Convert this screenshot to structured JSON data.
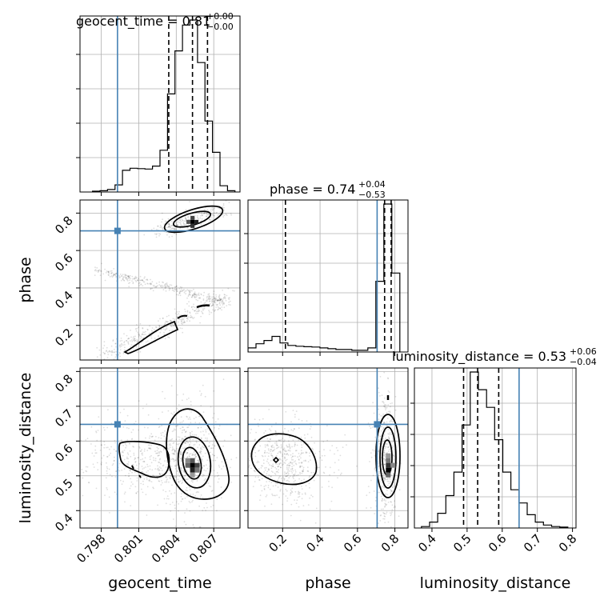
{
  "chart_data": {
    "type": "corner",
    "parameters": [
      "geocent_time",
      "phase",
      "luminosity_distance"
    ],
    "titles": {
      "geocent_time": {
        "name": "geocent_time",
        "value": "0.81",
        "plus": "+0.00",
        "minus": "−0.00"
      },
      "phase": {
        "name": "phase",
        "value": "0.74",
        "plus": "+0.04",
        "minus": "−0.53"
      },
      "luminosity_distance": {
        "name": "luminosity_distance",
        "value": "0.53",
        "plus": "+0.06",
        "minus": "−0.04"
      }
    },
    "axis_labels": {
      "geocent_time": "geocent_time",
      "phase": "phase",
      "luminosity_distance": "luminosity_distance"
    },
    "ranges": {
      "geocent_time": [
        0.7963,
        0.8091
      ],
      "phase": [
        0.015,
        0.87
      ],
      "luminosity_distance": [
        0.35,
        0.81
      ]
    },
    "ticks": {
      "geocent_time": [
        0.798,
        0.801,
        0.804,
        0.807
      ],
      "phase": [
        0.2,
        0.4,
        0.6,
        0.8
      ],
      "luminosity_distance": [
        0.4,
        0.5,
        0.6,
        0.7,
        0.8
      ]
    },
    "tick_labels": {
      "geocent_time": [
        "0.798",
        "0.801",
        "0.804",
        "0.807"
      ],
      "phase": [
        "0.2",
        "0.4",
        "0.6",
        "0.8"
      ],
      "luminosity_distance": [
        "0.4",
        "0.5",
        "0.6",
        "0.7",
        "0.8"
      ]
    },
    "truths": {
      "geocent_time": 0.7993,
      "phase": 0.705,
      "luminosity_distance": 0.648
    },
    "truth_color": "#4682b4",
    "quantiles": {
      "geocent_time": [
        0.8034,
        0.8053,
        0.8065
      ],
      "phase": [
        0.215,
        0.745,
        0.78
      ],
      "luminosity_distance": [
        0.49,
        0.53,
        0.59
      ]
    },
    "histograms": {
      "geocent_time": {
        "edges": [
          0.7973,
          0.7979,
          0.7985,
          0.7991,
          0.7997,
          0.8003,
          0.8009,
          0.8015,
          0.8021,
          0.8027,
          0.8033,
          0.8039,
          0.8045,
          0.8051,
          0.8057,
          0.8063,
          0.8069,
          0.8075,
          0.8081,
          0.8087
        ],
        "counts": [
          2,
          3,
          6,
          17,
          52,
          57,
          56,
          55,
          62,
          100,
          235,
          338,
          400,
          412,
          310,
          170,
          95,
          15,
          3
        ]
      },
      "phase": {
        "edges": [
          0.015,
          0.0577,
          0.1004,
          0.1431,
          0.1858,
          0.2285,
          0.2712,
          0.3139,
          0.3566,
          0.3993,
          0.442,
          0.4847,
          0.5274,
          0.5701,
          0.6128,
          0.6555,
          0.6982,
          0.7409,
          0.7836,
          0.8263
        ],
        "counts": [
          25,
          50,
          70,
          95,
          55,
          40,
          35,
          32,
          30,
          25,
          20,
          15,
          15,
          10,
          10,
          25,
          430,
          900,
          480
        ]
      },
      "luminosity_distance": {
        "edges": [
          0.37,
          0.3932,
          0.4163,
          0.4395,
          0.4626,
          0.4858,
          0.5089,
          0.5321,
          0.5553,
          0.5784,
          0.6016,
          0.6247,
          0.6479,
          0.6711,
          0.6942,
          0.7174,
          0.7405,
          0.7637,
          0.7868
        ],
        "counts": [
          5,
          20,
          50,
          110,
          190,
          350,
          530,
          470,
          410,
          300,
          190,
          130,
          85,
          45,
          20,
          10,
          5,
          3
        ]
      }
    },
    "density_modes": [
      {
        "pair": [
          "geocent_time",
          "phase"
        ],
        "x": 0.8053,
        "y": 0.755
      },
      {
        "pair": [
          "geocent_time",
          "luminosity_distance"
        ],
        "x": 0.8053,
        "y": 0.53
      },
      {
        "pair": [
          "phase",
          "luminosity_distance"
        ],
        "x": 0.79,
        "y": 0.53
      }
    ],
    "grid": true
  }
}
